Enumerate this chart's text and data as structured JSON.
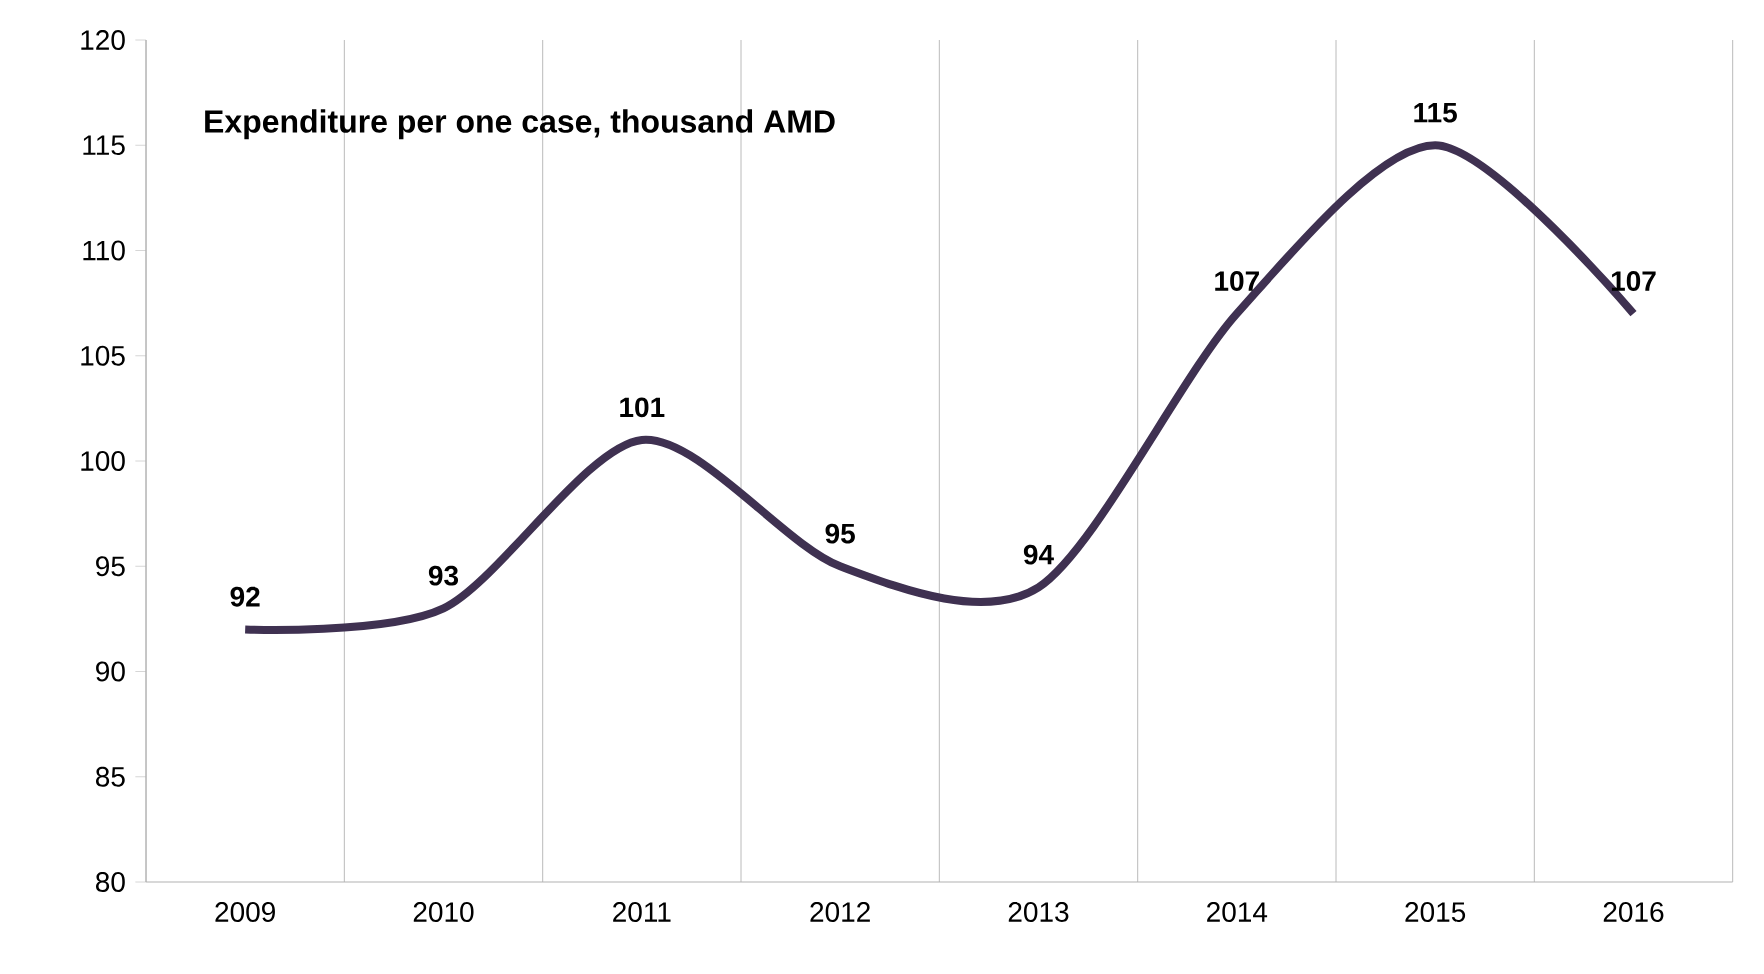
{
  "chart_data": {
    "type": "line",
    "title": "Expenditure per one case, thousand AMD",
    "categories": [
      "2009",
      "2010",
      "2011",
      "2012",
      "2013",
      "2014",
      "2015",
      "2016"
    ],
    "values": [
      92,
      93,
      101,
      95,
      94,
      107,
      115,
      107
    ],
    "color": "#3f3151",
    "ylim": [
      80,
      120
    ],
    "yticks": [
      80,
      85,
      90,
      95,
      100,
      105,
      110,
      115,
      120
    ],
    "grid": "x",
    "data_labels": true,
    "marker": "none",
    "line_style": "solid"
  }
}
